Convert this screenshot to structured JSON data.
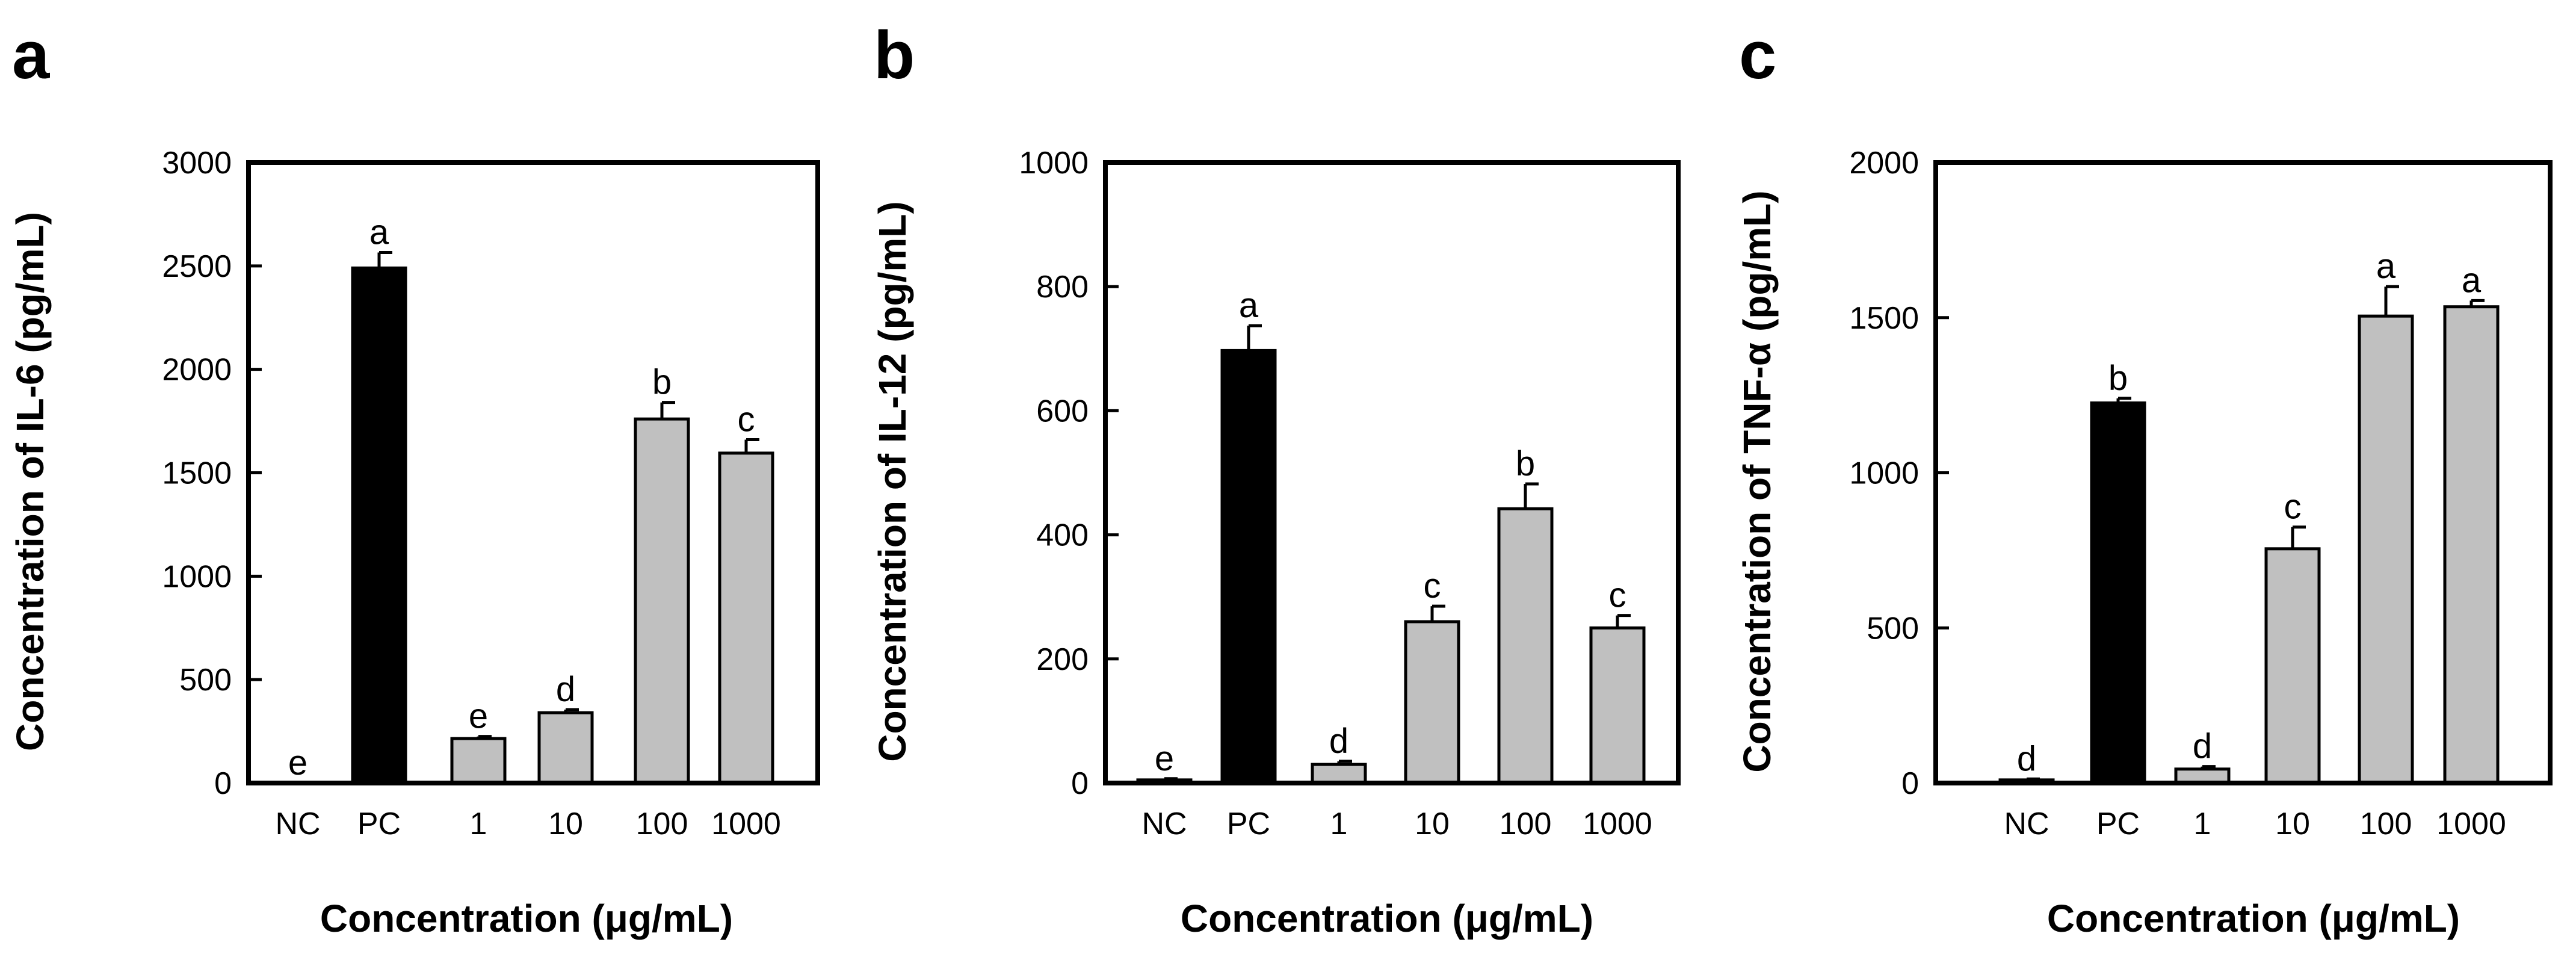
{
  "figure": {
    "panels": [
      {
        "letter": "a"
      },
      {
        "letter": "b"
      },
      {
        "letter": "c"
      }
    ]
  },
  "chart_data": [
    {
      "type": "bar",
      "panel": "a",
      "title": "",
      "xlabel": "Concentration (μg/mL)",
      "ylabel": "Concentration of IL-6 (pg/mL)",
      "ylim": [
        0,
        3000
      ],
      "yticks": [
        0,
        500,
        1000,
        1500,
        2000,
        2500,
        3000
      ],
      "categories": [
        "NC",
        "PC",
        "1",
        "10",
        "100",
        "1000"
      ],
      "values": [
        0,
        2490,
        215,
        340,
        1760,
        1595
      ],
      "errors": [
        0,
        75,
        10,
        15,
        80,
        65
      ],
      "significance": [
        "e",
        "a",
        "e",
        "d",
        "b",
        "c"
      ],
      "bar_colors": [
        "#000000",
        "#000000",
        "#c0c0c0",
        "#c0c0c0",
        "#c0c0c0",
        "#c0c0c0"
      ]
    },
    {
      "type": "bar",
      "panel": "b",
      "title": "",
      "xlabel": "Concentration (μg/mL)",
      "ylabel": "Concentration of IL-12 (pg/mL)",
      "ylim": [
        0,
        1000
      ],
      "yticks": [
        0,
        200,
        400,
        600,
        800,
        1000
      ],
      "categories": [
        "NC",
        "PC",
        "1",
        "10",
        "100",
        "1000"
      ],
      "values": [
        5,
        697,
        30,
        260,
        442,
        250
      ],
      "errors": [
        2,
        40,
        5,
        25,
        40,
        20
      ],
      "significance": [
        "e",
        "a",
        "d",
        "c",
        "b",
        "c"
      ],
      "bar_colors": [
        "#c0c0c0",
        "#000000",
        "#c0c0c0",
        "#c0c0c0",
        "#c0c0c0",
        "#c0c0c0"
      ]
    },
    {
      "type": "bar",
      "panel": "c",
      "title": "",
      "xlabel": "Concentration (μg/mL)",
      "ylabel": "Concentration of TNF-α (pg/mL)",
      "ylim": [
        0,
        2000
      ],
      "yticks": [
        0,
        500,
        1000,
        1500,
        2000
      ],
      "categories": [
        "NC",
        "PC",
        "1",
        "10",
        "100",
        "1000"
      ],
      "values": [
        10,
        1225,
        45,
        755,
        1505,
        1535
      ],
      "errors": [
        3,
        15,
        8,
        70,
        95,
        20
      ],
      "significance": [
        "d",
        "b",
        "d",
        "c",
        "a",
        "a"
      ],
      "bar_colors": [
        "#c0c0c0",
        "#000000",
        "#c0c0c0",
        "#c0c0c0",
        "#c0c0c0",
        "#c0c0c0"
      ]
    }
  ]
}
